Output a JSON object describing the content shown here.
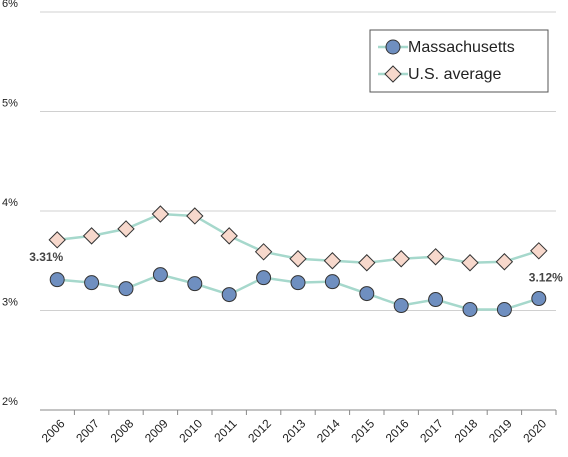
{
  "chart_data": {
    "type": "line",
    "categories": [
      "2006",
      "2007",
      "2008",
      "2009",
      "2010",
      "2011",
      "2012",
      "2013",
      "2014",
      "2015",
      "2016",
      "2017",
      "2018",
      "2019",
      "2020"
    ],
    "series": [
      {
        "name": "Massachusetts",
        "color": "#6f8fc0",
        "marker": "circle",
        "values": [
          3.31,
          3.28,
          3.22,
          3.36,
          3.27,
          3.16,
          3.33,
          3.28,
          3.29,
          3.17,
          3.05,
          3.11,
          3.01,
          3.01,
          3.12
        ],
        "value_labels": [
          "3.31%",
          null,
          null,
          null,
          null,
          null,
          null,
          null,
          null,
          null,
          null,
          null,
          null,
          null,
          "3.12%"
        ]
      },
      {
        "name": "U.S. average",
        "color": "#f7d8cc",
        "marker": "diamond",
        "values": [
          3.71,
          3.75,
          3.82,
          3.97,
          3.95,
          3.75,
          3.59,
          3.52,
          3.5,
          3.48,
          3.52,
          3.54,
          3.48,
          3.49,
          3.6
        ]
      }
    ],
    "line_color": "#a6d8cc",
    "ylim": [
      2,
      6
    ],
    "yticks": [
      {
        "value": 2,
        "label": "2%"
      },
      {
        "value": 3,
        "label": "3%"
      },
      {
        "value": 4,
        "label": "4%"
      },
      {
        "value": 5,
        "label": "5%"
      },
      {
        "value": 6,
        "label": "6%"
      }
    ],
    "grid": true,
    "legend": "top-right"
  }
}
